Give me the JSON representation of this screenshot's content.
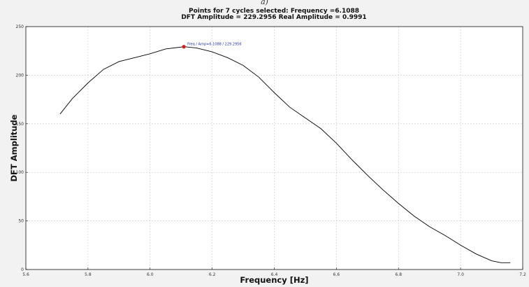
{
  "top_label": "a)",
  "chart_data": {
    "type": "line",
    "title": [
      "Points for 7 cycles selected: Frequency =6.1088",
      "DFT Amplitude = 229.2956 Real Amplitude = 0.9991"
    ],
    "xlabel": "Frequency [Hz]",
    "ylabel": "DFT Amplitude",
    "xlim": [
      5.6,
      7.2
    ],
    "ylim": [
      0,
      250
    ],
    "xticks": [
      5.6,
      5.8,
      6.0,
      6.2,
      6.4,
      6.6,
      6.8,
      7.0,
      7.2
    ],
    "xtick_labels": [
      "5.6",
      "5.8",
      "6.0",
      "6.2",
      "6.4",
      "6.6",
      "6.8",
      "7.0",
      "7.2"
    ],
    "yticks": [
      0,
      50,
      100,
      150,
      200,
      250
    ],
    "ytick_labels": [
      "0",
      "50",
      "100",
      "150",
      "200",
      "250"
    ],
    "grid": true,
    "line_color": "#000000",
    "marker_color": "#cc2222",
    "series": [
      {
        "x": [
          5.71,
          5.75,
          5.8,
          5.85,
          5.9,
          5.95,
          6.0,
          6.05,
          6.11,
          6.15,
          6.2,
          6.25,
          6.3,
          6.35,
          6.4,
          6.45,
          6.5,
          6.55,
          6.6,
          6.65,
          6.7,
          6.75,
          6.8,
          6.85,
          6.9,
          6.95,
          7.0,
          7.05,
          7.1,
          7.13,
          7.16
        ],
        "y": [
          160,
          176,
          192,
          206,
          214,
          218,
          222,
          227,
          229.3,
          228,
          224,
          218,
          210,
          198,
          182,
          167,
          156,
          145,
          130,
          113,
          97,
          82,
          68,
          55,
          44,
          35,
          25,
          16,
          9,
          7,
          7
        ]
      }
    ],
    "highlight": {
      "x": 6.1088,
      "y": 229.2956
    },
    "annotation": "Freq / Amp=6.1088 / 229.2956"
  }
}
